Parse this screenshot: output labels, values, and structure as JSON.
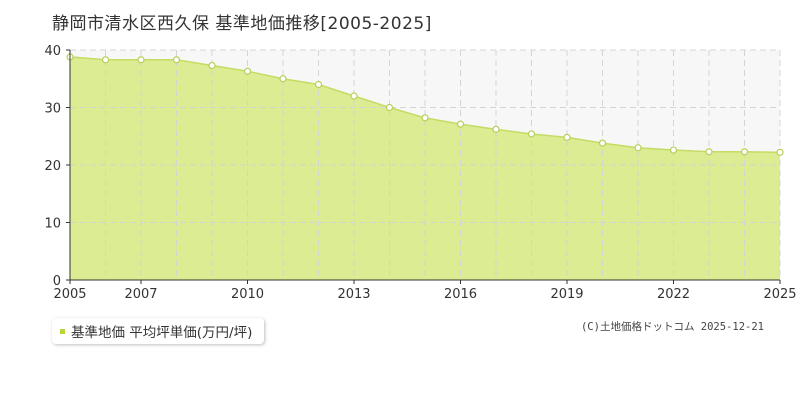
{
  "title": "静岡市清水区西久保 基準地価推移[2005-2025]",
  "legend": {
    "label": "基準地価 平均坪単価(万円/坪)"
  },
  "copyright": "(C)土地価格ドットコム 2025-12-21",
  "colors": {
    "fill": "#dbec92",
    "line": "#c4dc64",
    "marker_fill": "#ffffff",
    "marker_stroke": "#b5d05a",
    "legend_swatch": "#b6d63c",
    "grid": "#d4d4d4",
    "plot_bg": "#f7f7f7",
    "axis": "#333333"
  },
  "chart_data": {
    "type": "area",
    "x": [
      2005,
      2006,
      2007,
      2008,
      2009,
      2010,
      2011,
      2012,
      2013,
      2014,
      2015,
      2016,
      2017,
      2018,
      2019,
      2020,
      2021,
      2022,
      2023,
      2024,
      2025
    ],
    "series": [
      {
        "name": "基準地価 平均坪単価(万円/坪)",
        "values": [
          38.8,
          38.3,
          38.3,
          38.3,
          37.3,
          36.3,
          35.0,
          34.0,
          32.0,
          30.0,
          28.2,
          27.1,
          26.2,
          25.4,
          24.8,
          23.8,
          23.0,
          22.6,
          22.3,
          22.3,
          22.2
        ]
      }
    ],
    "x_ticks": [
      "2005",
      "2007",
      "2010",
      "2013",
      "2016",
      "2019",
      "2022",
      "2025"
    ],
    "y_ticks": [
      "0",
      "10",
      "20",
      "30",
      "40"
    ],
    "xlim": [
      2005,
      2025
    ],
    "ylim": [
      0,
      40
    ],
    "grid": true,
    "legend_position": "bottom-left"
  }
}
